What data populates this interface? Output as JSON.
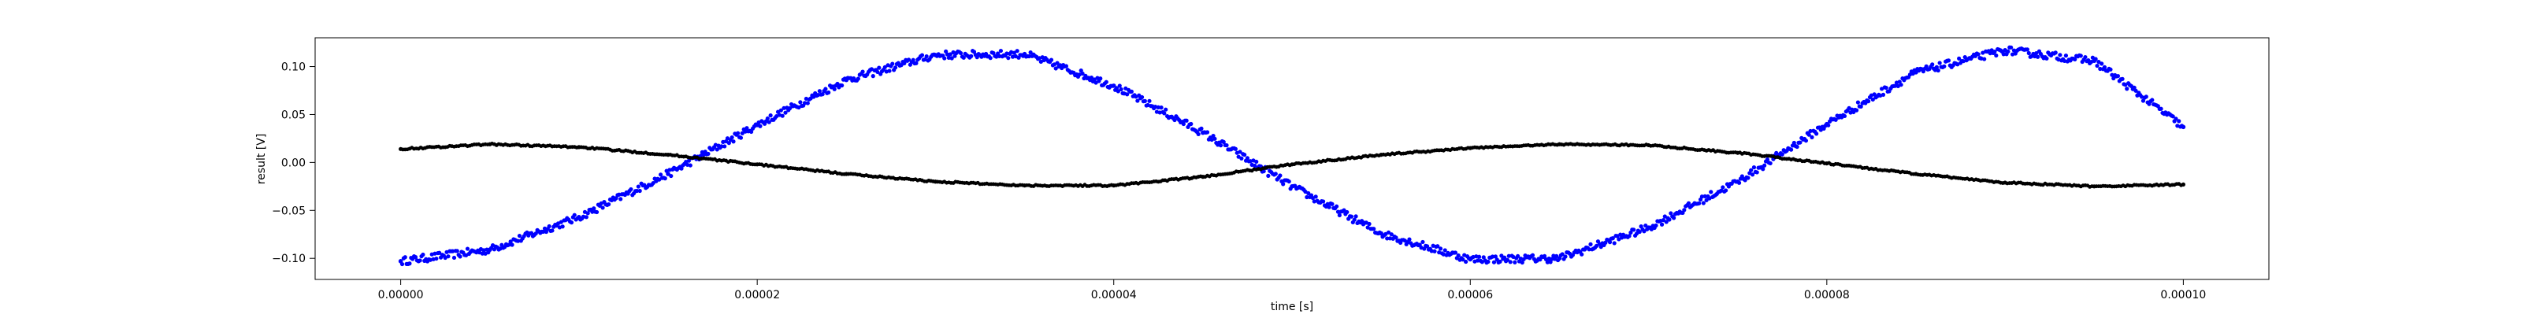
{
  "chart_data": {
    "type": "scatter",
    "title": "",
    "xlabel": "time [s]",
    "ylabel": "result [V]",
    "xlim": [
      -4.8e-06,
      0.0001048
    ],
    "ylim": [
      -0.122,
      0.13
    ],
    "x_ticks": [
      0,
      2e-05,
      4e-05,
      6e-05,
      8e-05,
      0.0001
    ],
    "x_tick_labels": [
      "0.00000",
      "0.00002",
      "0.00004",
      "0.00006",
      "0.00008",
      "0.00010"
    ],
    "y_ticks": [
      -0.1,
      -0.05,
      0.0,
      0.05,
      0.1
    ],
    "y_tick_labels": [
      "−0.10",
      "−0.05",
      "0.00",
      "0.05",
      "0.10"
    ],
    "grid": false,
    "legend": null,
    "series": [
      {
        "color": "#0000ff",
        "marker": "dot",
        "x": [
          0,
          5e-06,
          1e-05,
          1.5e-05,
          2e-05,
          2.5e-05,
          3e-05,
          3.5e-05,
          4e-05,
          4.5e-05,
          5e-05,
          5.5e-05,
          6e-05,
          6.5e-05,
          7e-05,
          7.5e-05,
          8e-05,
          8.5e-05,
          9e-05,
          9.5e-05,
          0.0001
        ],
        "y": [
          -0.103,
          -0.091,
          -0.057,
          -0.012,
          0.039,
          0.086,
          0.112,
          0.113,
          0.08,
          0.031,
          -0.025,
          -0.074,
          -0.101,
          -0.1,
          -0.068,
          -0.02,
          0.04,
          0.094,
          0.117,
          0.106,
          0.037
        ]
      },
      {
        "color": "#000000",
        "marker": "dot",
        "x": [
          0,
          5e-06,
          1e-05,
          1.5e-05,
          2e-05,
          2.5e-05,
          3e-05,
          3.5e-05,
          4e-05,
          4.5e-05,
          5e-05,
          5.5e-05,
          6e-05,
          6.5e-05,
          7e-05,
          7.5e-05,
          8e-05,
          8.5e-05,
          9e-05,
          9.5e-05,
          0.0001
        ],
        "y": [
          0.014,
          0.019,
          0.016,
          0.008,
          -0.002,
          -0.012,
          -0.02,
          -0.024,
          -0.024,
          -0.015,
          -0.002,
          0.008,
          0.015,
          0.019,
          0.018,
          0.01,
          -0.001,
          -0.012,
          -0.021,
          -0.025,
          -0.023
        ]
      }
    ]
  }
}
